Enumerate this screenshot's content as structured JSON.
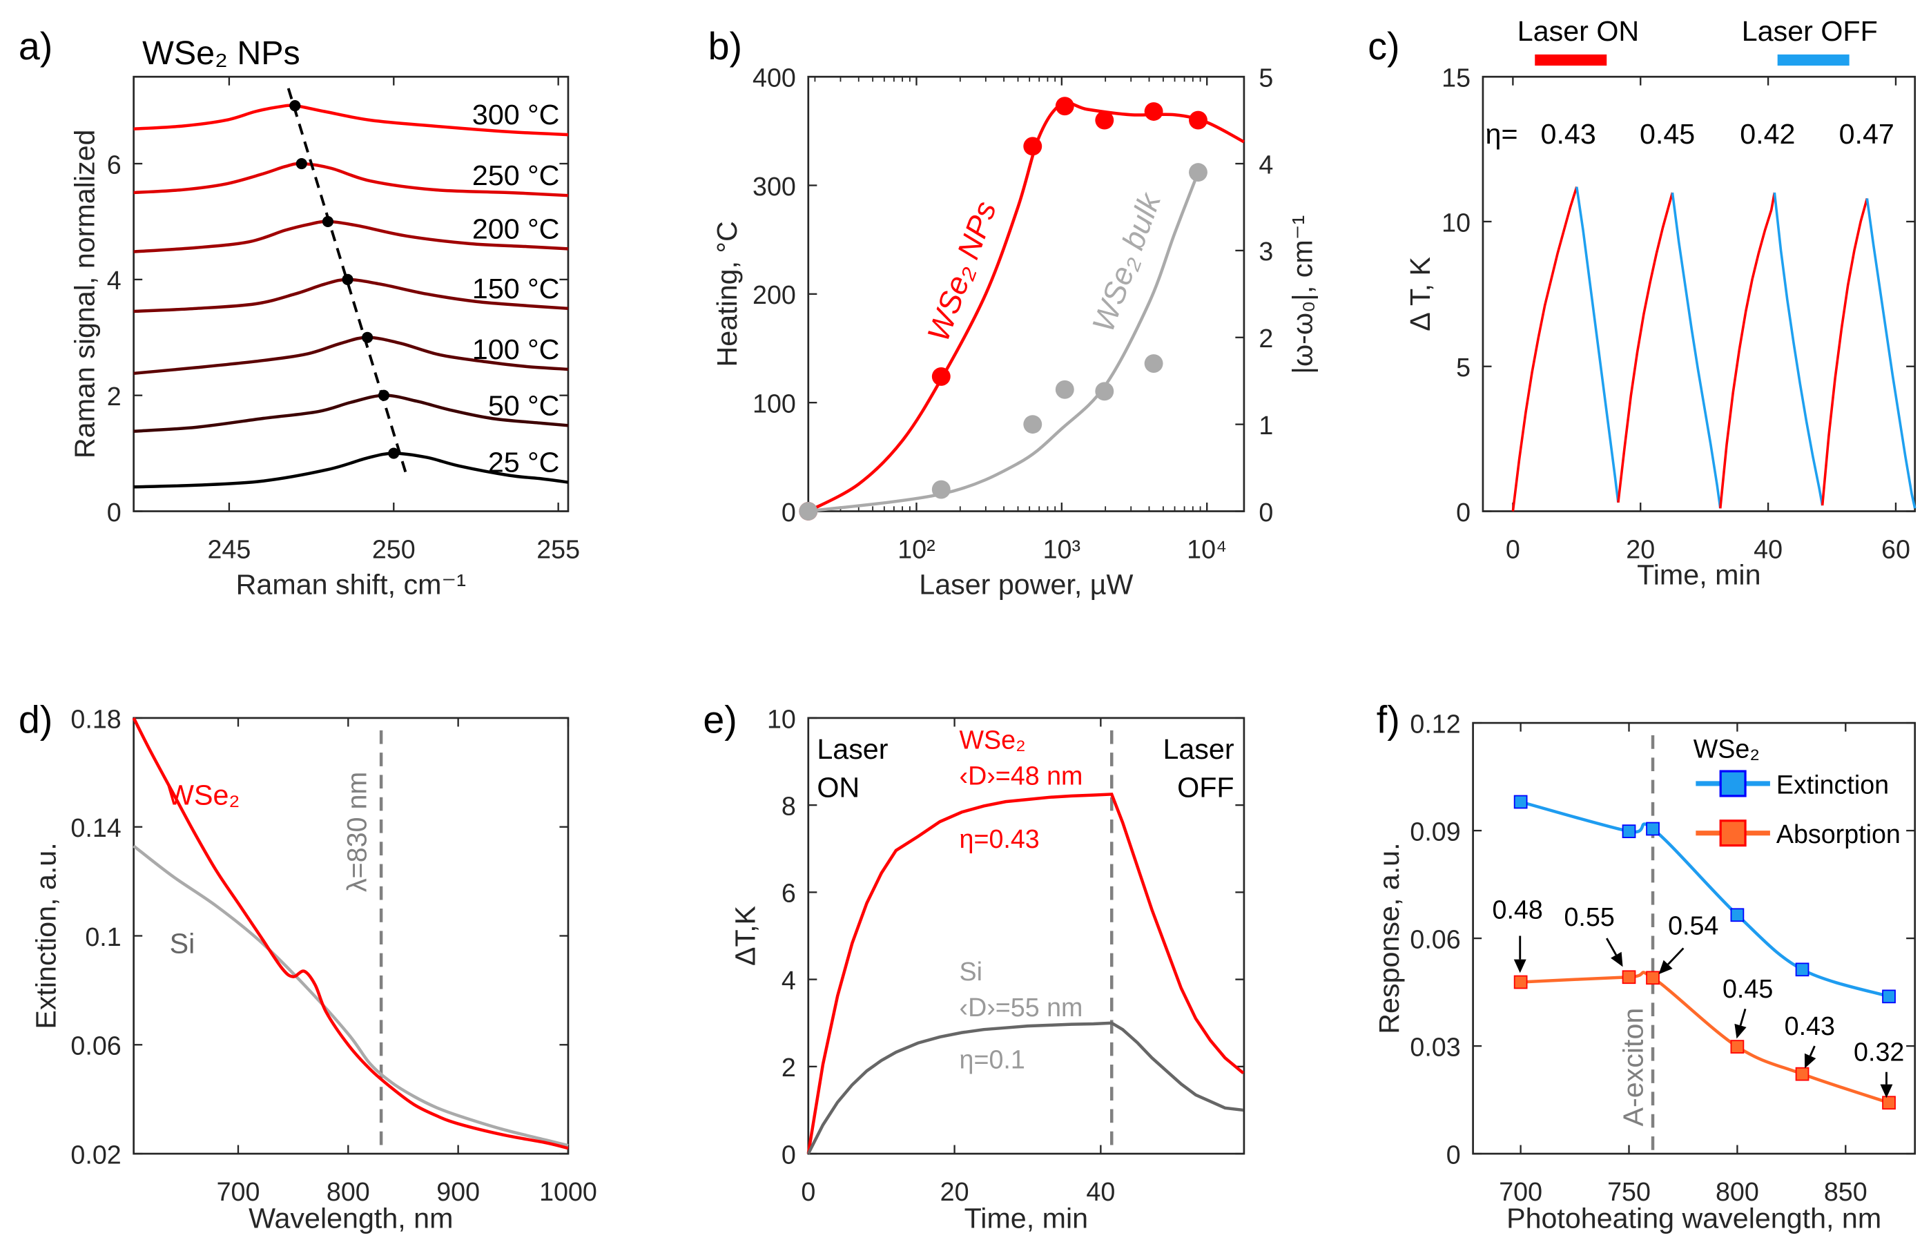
{
  "chart_data": [
    {
      "panel_label": "a)",
      "type": "line",
      "title": "WSe₂ NPs",
      "xlabel": "Raman shift, cm⁻¹",
      "ylabel": "Raman signal, normalized",
      "xlim": [
        242.1,
        255.3
      ],
      "ylim": [
        0,
        7.5
      ],
      "xticks": [
        245,
        250,
        255
      ],
      "xticklabels": [
        "245",
        "250",
        "255"
      ],
      "yticks": [
        0,
        2,
        4,
        6
      ],
      "yticklabels": [
        "0",
        "2",
        "4",
        "6"
      ],
      "series": [
        {
          "name": "25 °C",
          "color": "#000000",
          "peak": [
            250.0,
            1.0
          ],
          "x": [
            242.1,
            244,
            246,
            248,
            249.2,
            250.0,
            251,
            252,
            253.5,
            254.5,
            255.3
          ],
          "y": [
            0.42,
            0.45,
            0.52,
            0.72,
            0.92,
            1.0,
            0.93,
            0.78,
            0.62,
            0.56,
            0.5
          ]
        },
        {
          "name": "50 °C",
          "color": "#3d0000",
          "peak": [
            249.7,
            2.0
          ],
          "x": [
            242.1,
            244,
            246,
            247.7,
            248.7,
            249.7,
            250.7,
            251.7,
            253,
            254.5,
            255.3
          ],
          "y": [
            1.38,
            1.45,
            1.6,
            1.72,
            1.88,
            2.0,
            1.9,
            1.75,
            1.6,
            1.52,
            1.48
          ]
        },
        {
          "name": "100 °C",
          "color": "#5c0000",
          "peak": [
            249.2,
            3.0
          ],
          "x": [
            242.1,
            244,
            246,
            247.4,
            248.4,
            249.2,
            250.2,
            251.4,
            252.8,
            254,
            255.3
          ],
          "y": [
            2.38,
            2.48,
            2.6,
            2.72,
            2.9,
            3.0,
            2.9,
            2.7,
            2.58,
            2.5,
            2.45
          ]
        },
        {
          "name": "150 °C",
          "color": "#7a0000",
          "peak": [
            248.6,
            4.0
          ],
          "x": [
            242.1,
            244,
            245.8,
            247,
            247.9,
            248.6,
            249.6,
            251,
            252.5,
            254,
            255.3
          ],
          "y": [
            3.45,
            3.5,
            3.58,
            3.75,
            3.92,
            4.0,
            3.92,
            3.75,
            3.62,
            3.55,
            3.5
          ]
        },
        {
          "name": "200 °C",
          "color": "#a00000",
          "peak": [
            248.0,
            5.0
          ],
          "x": [
            242.1,
            244,
            245.6,
            246.7,
            247.4,
            248.0,
            248.9,
            250.4,
            252.3,
            254,
            255.3
          ],
          "y": [
            4.48,
            4.55,
            4.65,
            4.85,
            4.95,
            5.0,
            4.93,
            4.75,
            4.62,
            4.57,
            4.53
          ]
        },
        {
          "name": "250 °C",
          "color": "#e00000",
          "peak": [
            247.2,
            6.0
          ],
          "x": [
            242.1,
            243.6,
            244.9,
            246,
            246.7,
            247.2,
            248.1,
            249.3,
            251.2,
            253.5,
            255.3
          ],
          "y": [
            5.5,
            5.55,
            5.65,
            5.82,
            5.95,
            6.0,
            5.92,
            5.7,
            5.55,
            5.5,
            5.45
          ]
        },
        {
          "name": "300 °C",
          "color": "#ff0000",
          "peak": [
            247.0,
            7.0
          ],
          "x": [
            242.1,
            243.6,
            244.9,
            245.8,
            246.5,
            247.0,
            247.9,
            249.3,
            251.2,
            253.5,
            255.3
          ],
          "y": [
            6.6,
            6.65,
            6.75,
            6.9,
            6.98,
            7.0,
            6.9,
            6.75,
            6.65,
            6.55,
            6.5
          ]
        }
      ],
      "trend_line": {
        "style": "dashed",
        "color": "#000000",
        "x": [
          246.8,
          250.4
        ],
        "y": [
          7.3,
          0.6
        ]
      }
    },
    {
      "panel_label": "b)",
      "type": "scatter",
      "xlabel": "Laser power, µW",
      "ylabel": "Heating, °C",
      "y2label": "|ω-ω₀|, cm⁻¹",
      "xscale": "log",
      "xlim": [
        18,
        18000
      ],
      "ylim": [
        0,
        400
      ],
      "y2lim": [
        0,
        5
      ],
      "xticks": [
        100,
        1000,
        10000
      ],
      "xticklabels": [
        "10²",
        "10³",
        "10⁴"
      ],
      "yticks": [
        0,
        100,
        200,
        300,
        400
      ],
      "yticklabels": [
        "0",
        "100",
        "200",
        "300",
        "400"
      ],
      "y2ticks": [
        0,
        1,
        2,
        3,
        4,
        5
      ],
      "y2ticklabels": [
        "0",
        "1",
        "2",
        "3",
        "4",
        "5"
      ],
      "series": [
        {
          "name": "WSe₂ NPs",
          "axis": "left",
          "color": "#ff0000",
          "x": [
            18,
            148,
            631,
            1050,
            1970,
            4300,
            8700
          ],
          "y": [
            0,
            124,
            336,
            373,
            360,
            368,
            360
          ],
          "fit": {
            "x": [
              18,
              40,
              80,
              150,
              300,
              500,
              700,
              1000,
              1500,
              3000,
              6000,
              10000,
              18000
            ],
            "y": [
              0,
              25,
              65,
              123,
              200,
              280,
              345,
              375,
              370,
              365,
              365,
              358,
              340
            ]
          }
        },
        {
          "name": "WSe₂ bulk",
          "axis": "right",
          "color": "#aaaaaa",
          "x": [
            18,
            148,
            631,
            1050,
            1970,
            4300,
            8700
          ],
          "y": [
            0,
            0.25,
            1.0,
            1.4,
            1.38,
            1.7,
            3.9
          ],
          "fit": {
            "x": [
              18,
              150,
              500,
              1000,
              2000,
              4000,
              6000,
              8700
            ],
            "y": [
              0,
              0.2,
              0.55,
              0.95,
              1.45,
              2.4,
              3.2,
              3.9
            ]
          }
        }
      ]
    },
    {
      "panel_label": "c)",
      "type": "line",
      "xlabel": "Time, min",
      "ylabel": "Δ T, K",
      "xlim": [
        -4.7,
        63
      ],
      "ylim": [
        0,
        15
      ],
      "xticks": [
        0,
        20,
        40,
        60
      ],
      "xticklabels": [
        "0",
        "20",
        "40",
        "60"
      ],
      "yticks": [
        0,
        5,
        10,
        15
      ],
      "yticklabels": [
        "0",
        "5",
        "10",
        "15"
      ],
      "legend": [
        {
          "label": "Laser ON",
          "color": "#ff0000"
        },
        {
          "label": "Laser OFF",
          "color": "#1ea0f0"
        }
      ],
      "eta_prefix": "η=",
      "eta_values": [
        "0.43",
        "0.45",
        "0.42",
        "0.47"
      ],
      "segments": [
        {
          "state": "on",
          "x": [
            0,
            1,
            2,
            3,
            4,
            5,
            6,
            7,
            8,
            9,
            10
          ],
          "y": [
            0,
            1.8,
            3.4,
            4.8,
            6.0,
            7.1,
            8.0,
            8.9,
            9.7,
            10.5,
            11.2
          ]
        },
        {
          "state": "off",
          "x": [
            10,
            11,
            12,
            13,
            14,
            15,
            16,
            16.5
          ],
          "y": [
            11.2,
            9.7,
            8.0,
            6.3,
            4.6,
            2.9,
            1.2,
            0.3
          ]
        },
        {
          "state": "on",
          "x": [
            16.5,
            17.5,
            18.5,
            19.5,
            20.5,
            21.5,
            22.5,
            23.5,
            24.5,
            25
          ],
          "y": [
            0.3,
            2.2,
            4.0,
            5.5,
            6.8,
            7.9,
            8.9,
            9.8,
            10.6,
            11.0
          ]
        },
        {
          "state": "off",
          "x": [
            25,
            26,
            27,
            28,
            29,
            30,
            31,
            32,
            32.5
          ],
          "y": [
            11.0,
            9.3,
            7.8,
            6.3,
            4.9,
            3.6,
            2.3,
            0.9,
            0.1
          ]
        },
        {
          "state": "on",
          "x": [
            32.5,
            33.5,
            34.5,
            35.5,
            36.5,
            37.5,
            38.5,
            39.5,
            40.5,
            41
          ],
          "y": [
            0.1,
            2.3,
            4.1,
            5.6,
            6.9,
            8.0,
            8.9,
            9.7,
            10.4,
            11.0
          ]
        },
        {
          "state": "off",
          "x": [
            41,
            42,
            43,
            44,
            45,
            46,
            47,
            48,
            48.5
          ],
          "y": [
            11.0,
            9.0,
            7.3,
            5.8,
            4.4,
            3.1,
            1.9,
            0.8,
            0.2
          ]
        },
        {
          "state": "on",
          "x": [
            48.5,
            49.5,
            50.5,
            51.5,
            52.5,
            53.5,
            54.5,
            55.5
          ],
          "y": [
            0.2,
            2.6,
            4.6,
            6.3,
            7.8,
            9.0,
            10.0,
            10.8
          ]
        },
        {
          "state": "off",
          "x": [
            55.5,
            56.5,
            57.5,
            58.5,
            59.5,
            60.5,
            61.5,
            62.5,
            63
          ],
          "y": [
            10.8,
            9.2,
            7.7,
            6.2,
            4.7,
            3.3,
            1.9,
            0.6,
            0.1
          ]
        }
      ]
    },
    {
      "panel_label": "d)",
      "type": "line",
      "xlabel": "Wavelength, nm",
      "ylabel": "Extinction, a.u.",
      "xlim": [
        605,
        1000
      ],
      "ylim": [
        0.02,
        0.18
      ],
      "xticks": [
        700,
        800,
        900,
        1000
      ],
      "xticklabels": [
        "700",
        "800",
        "900",
        "1000"
      ],
      "yticks": [
        0.02,
        0.06,
        0.1,
        0.14,
        0.18
      ],
      "yticklabels": [
        "0.02",
        "0.06",
        "0.1",
        "0.14",
        "0.18"
      ],
      "vline": {
        "x": 830,
        "label": "λ=830 nm",
        "color": "#808080"
      },
      "series": [
        {
          "name": "WSe₂",
          "color": "#ff0000",
          "x": [
            605,
            620,
            640,
            660,
            680,
            700,
            720,
            740,
            750,
            760,
            770,
            780,
            800,
            820,
            840,
            860,
            880,
            900,
            940,
            980,
            1000
          ],
          "y": [
            0.18,
            0.168,
            0.153,
            0.138,
            0.124,
            0.112,
            0.1,
            0.088,
            0.085,
            0.087,
            0.082,
            0.072,
            0.06,
            0.051,
            0.044,
            0.038,
            0.034,
            0.031,
            0.027,
            0.024,
            0.022
          ]
        },
        {
          "name": "Si",
          "color": "#aaaaaa",
          "x": [
            605,
            640,
            680,
            720,
            760,
            800,
            820,
            840,
            860,
            880,
            900,
            940,
            980,
            1000
          ],
          "y": [
            0.133,
            0.122,
            0.111,
            0.098,
            0.082,
            0.064,
            0.053,
            0.046,
            0.041,
            0.037,
            0.034,
            0.029,
            0.025,
            0.023
          ]
        }
      ]
    },
    {
      "panel_label": "e)",
      "type": "line",
      "xlabel": "Time, min",
      "ylabel": "ΔT,K",
      "xlim": [
        0,
        59.6
      ],
      "ylim": [
        0,
        10
      ],
      "xticks": [
        0,
        20,
        40
      ],
      "xticklabels": [
        "0",
        "20",
        "40"
      ],
      "yticks": [
        0,
        2,
        4,
        6,
        8,
        10
      ],
      "yticklabels": [
        "0",
        "2",
        "4",
        "6",
        "8",
        "10"
      ],
      "vline": {
        "x": 41.5,
        "color": "#808080"
      },
      "laser_on": [
        "Laser",
        "ON"
      ],
      "laser_off": [
        "Laser",
        "OFF"
      ],
      "series": [
        {
          "name": "WSe₂",
          "labels": [
            "WSe₂",
            "‹D›=48 nm",
            "η=0.43"
          ],
          "color": "#ff0000",
          "x": [
            0,
            2,
            4,
            6,
            8,
            10,
            12,
            15,
            18,
            21,
            24,
            27,
            30,
            33,
            36,
            39,
            41.5,
            43,
            45,
            47,
            49,
            51,
            53,
            55,
            57,
            59.5
          ],
          "y": [
            0,
            2.05,
            3.62,
            4.83,
            5.75,
            6.44,
            6.96,
            7.28,
            7.62,
            7.84,
            7.98,
            8.08,
            8.13,
            8.18,
            8.21,
            8.23,
            8.25,
            7.6,
            6.6,
            5.6,
            4.7,
            3.8,
            3.1,
            2.6,
            2.2,
            1.85
          ]
        },
        {
          "name": "Si",
          "labels": [
            "Si",
            "‹D›=55 nm",
            "η=0.1"
          ],
          "color": "#666666",
          "label_color": "#999999",
          "x": [
            0,
            2,
            4,
            6,
            8,
            10,
            12,
            15,
            18,
            21,
            24,
            27,
            30,
            33,
            36,
            39,
            41.5,
            43,
            45,
            47,
            49,
            51,
            53,
            55,
            57,
            59.5
          ],
          "y": [
            0,
            0.66,
            1.18,
            1.58,
            1.9,
            2.14,
            2.33,
            2.54,
            2.68,
            2.78,
            2.85,
            2.89,
            2.93,
            2.95,
            2.97,
            2.98,
            3.0,
            2.85,
            2.55,
            2.2,
            1.9,
            1.6,
            1.35,
            1.2,
            1.05,
            1.0
          ]
        }
      ]
    },
    {
      "panel_label": "f)",
      "type": "line",
      "xlabel": "Photoheating wavelength, nm",
      "ylabel": "Response, a.u.",
      "xlim": [
        678,
        882
      ],
      "ylim": [
        0,
        0.12
      ],
      "xticks": [
        700,
        750,
        800,
        850
      ],
      "xticklabels": [
        "700",
        "750",
        "800",
        "850"
      ],
      "yticks": [
        0,
        0.03,
        0.06,
        0.09,
        0.12
      ],
      "yticklabels": [
        "0",
        "0.03",
        "0.06",
        "0.09",
        "0.12"
      ],
      "vline": {
        "x": 761,
        "label": "A-exciton",
        "color": "#808080"
      },
      "legend_title": "WSe₂",
      "series": [
        {
          "name": "Extinction",
          "color": "#1e9cf0",
          "marker_edge": "#0000ff",
          "x": [
            700,
            750,
            761,
            800,
            830,
            870
          ],
          "y": [
            0.098,
            0.0898,
            0.0905,
            0.0665,
            0.0513,
            0.0438
          ]
        },
        {
          "name": "Absorption",
          "color": "#ff6a2a",
          "marker_edge": "#ff0000",
          "x": [
            700,
            750,
            761,
            800,
            830,
            870
          ],
          "y": [
            0.0478,
            0.0492,
            0.049,
            0.0298,
            0.0222,
            0.0142
          ]
        }
      ],
      "efficiency_labels": [
        "0.48",
        "0.55",
        "0.54",
        "0.45",
        "0.43",
        "0.32"
      ]
    }
  ]
}
